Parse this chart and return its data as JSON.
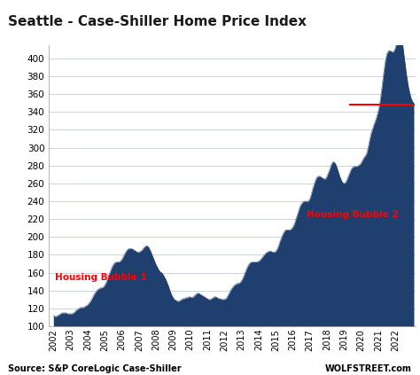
{
  "title": "Seattle - Case-Shiller Home Price Index",
  "source_left": "Source: S&P CoreLogic Case-Shiller",
  "source_right": "WOLFSTREET.com",
  "bar_color": "#1f3f6e",
  "background_color": "#ffffff",
  "grid_color": "#c8d4e0",
  "annotation1_text": "Housing Bubble 1",
  "annotation1_color": "#ff0000",
  "annotation2_text": "Housing Bubble 2",
  "annotation2_color": "#ff0000",
  "hline_color": "#ff0000",
  "hline_y": 348,
  "hline_xstart": 2019.3,
  "hline_xend": 2023.15,
  "ylim_min": 100,
  "ylim_max": 415,
  "yticks": [
    100,
    120,
    140,
    160,
    180,
    200,
    220,
    240,
    260,
    280,
    300,
    320,
    340,
    360,
    380,
    400
  ],
  "data": {
    "2002-01": 112,
    "2002-02": 111,
    "2002-03": 111,
    "2002-04": 112,
    "2002-05": 113,
    "2002-06": 114,
    "2002-07": 115,
    "2002-08": 115,
    "2002-09": 115,
    "2002-10": 115,
    "2002-11": 114,
    "2002-12": 114,
    "2003-01": 114,
    "2003-02": 114,
    "2003-03": 115,
    "2003-04": 116,
    "2003-05": 118,
    "2003-06": 119,
    "2003-07": 120,
    "2003-08": 121,
    "2003-09": 121,
    "2003-10": 121,
    "2003-11": 122,
    "2003-12": 123,
    "2004-01": 124,
    "2004-02": 126,
    "2004-03": 128,
    "2004-04": 131,
    "2004-05": 134,
    "2004-06": 137,
    "2004-07": 139,
    "2004-08": 141,
    "2004-09": 142,
    "2004-10": 143,
    "2004-11": 143,
    "2004-12": 144,
    "2005-01": 146,
    "2005-02": 149,
    "2005-03": 153,
    "2005-04": 157,
    "2005-05": 162,
    "2005-06": 166,
    "2005-07": 169,
    "2005-08": 171,
    "2005-09": 172,
    "2005-10": 172,
    "2005-11": 172,
    "2005-12": 173,
    "2006-01": 175,
    "2006-02": 178,
    "2006-03": 181,
    "2006-04": 184,
    "2006-05": 186,
    "2006-06": 187,
    "2006-07": 187,
    "2006-08": 187,
    "2006-09": 186,
    "2006-10": 185,
    "2006-11": 184,
    "2006-12": 183,
    "2007-01": 183,
    "2007-02": 184,
    "2007-03": 185,
    "2007-04": 187,
    "2007-05": 189,
    "2007-06": 190,
    "2007-07": 190,
    "2007-08": 188,
    "2007-09": 185,
    "2007-10": 181,
    "2007-11": 177,
    "2007-12": 173,
    "2008-01": 169,
    "2008-02": 166,
    "2008-03": 163,
    "2008-04": 161,
    "2008-05": 160,
    "2008-06": 158,
    "2008-07": 155,
    "2008-08": 152,
    "2008-09": 148,
    "2008-10": 144,
    "2008-11": 139,
    "2008-12": 135,
    "2009-01": 132,
    "2009-02": 130,
    "2009-03": 129,
    "2009-04": 128,
    "2009-05": 128,
    "2009-06": 129,
    "2009-07": 130,
    "2009-08": 131,
    "2009-09": 131,
    "2009-10": 132,
    "2009-11": 132,
    "2009-12": 133,
    "2010-01": 133,
    "2010-02": 132,
    "2010-03": 133,
    "2010-04": 134,
    "2010-05": 136,
    "2010-06": 137,
    "2010-07": 137,
    "2010-08": 136,
    "2010-09": 135,
    "2010-10": 134,
    "2010-11": 133,
    "2010-12": 132,
    "2011-01": 131,
    "2011-02": 130,
    "2011-03": 130,
    "2011-04": 131,
    "2011-05": 132,
    "2011-06": 133,
    "2011-07": 133,
    "2011-08": 132,
    "2011-09": 131,
    "2011-10": 131,
    "2011-11": 130,
    "2011-12": 130,
    "2012-01": 130,
    "2012-02": 131,
    "2012-03": 133,
    "2012-04": 136,
    "2012-05": 139,
    "2012-06": 142,
    "2012-07": 144,
    "2012-08": 146,
    "2012-09": 147,
    "2012-10": 148,
    "2012-11": 148,
    "2012-12": 149,
    "2013-01": 151,
    "2013-02": 154,
    "2013-03": 158,
    "2013-04": 162,
    "2013-05": 166,
    "2013-06": 169,
    "2013-07": 171,
    "2013-08": 172,
    "2013-09": 172,
    "2013-10": 172,
    "2013-11": 172,
    "2013-12": 172,
    "2014-01": 173,
    "2014-02": 174,
    "2014-03": 176,
    "2014-04": 178,
    "2014-05": 180,
    "2014-06": 182,
    "2014-07": 183,
    "2014-08": 184,
    "2014-09": 184,
    "2014-10": 184,
    "2014-11": 183,
    "2014-12": 183,
    "2015-01": 184,
    "2015-02": 186,
    "2015-03": 190,
    "2015-04": 195,
    "2015-05": 199,
    "2015-06": 203,
    "2015-07": 206,
    "2015-08": 208,
    "2015-09": 208,
    "2015-10": 208,
    "2015-11": 208,
    "2015-12": 209,
    "2016-01": 211,
    "2016-02": 214,
    "2016-03": 219,
    "2016-04": 224,
    "2016-05": 229,
    "2016-06": 234,
    "2016-07": 237,
    "2016-08": 239,
    "2016-09": 240,
    "2016-10": 240,
    "2016-11": 240,
    "2016-12": 240,
    "2017-01": 243,
    "2017-02": 248,
    "2017-03": 254,
    "2017-04": 259,
    "2017-05": 264,
    "2017-06": 267,
    "2017-07": 268,
    "2017-08": 268,
    "2017-09": 267,
    "2017-10": 266,
    "2017-11": 265,
    "2017-12": 265,
    "2018-01": 268,
    "2018-02": 272,
    "2018-03": 276,
    "2018-04": 281,
    "2018-05": 284,
    "2018-06": 284,
    "2018-07": 282,
    "2018-08": 278,
    "2018-09": 273,
    "2018-10": 268,
    "2018-11": 264,
    "2018-12": 261,
    "2019-01": 260,
    "2019-02": 261,
    "2019-03": 264,
    "2019-04": 268,
    "2019-05": 272,
    "2019-06": 276,
    "2019-07": 278,
    "2019-08": 279,
    "2019-09": 279,
    "2019-10": 279,
    "2019-11": 280,
    "2019-12": 281,
    "2020-01": 283,
    "2020-02": 286,
    "2020-03": 289,
    "2020-04": 291,
    "2020-05": 294,
    "2020-06": 301,
    "2020-07": 309,
    "2020-08": 316,
    "2020-09": 321,
    "2020-10": 326,
    "2020-11": 330,
    "2020-12": 335,
    "2021-01": 341,
    "2021-02": 349,
    "2021-03": 360,
    "2021-04": 373,
    "2021-05": 386,
    "2021-06": 397,
    "2021-07": 405,
    "2021-08": 408,
    "2021-09": 409,
    "2021-10": 408,
    "2021-11": 407,
    "2021-12": 408,
    "2022-01": 412,
    "2022-02": 418,
    "2022-03": 425,
    "2022-04": 430,
    "2022-05": 428,
    "2022-06": 418,
    "2022-07": 405,
    "2022-08": 392,
    "2022-09": 380,
    "2022-10": 370,
    "2022-11": 362,
    "2022-12": 356,
    "2023-01": 352,
    "2023-02": 350
  }
}
